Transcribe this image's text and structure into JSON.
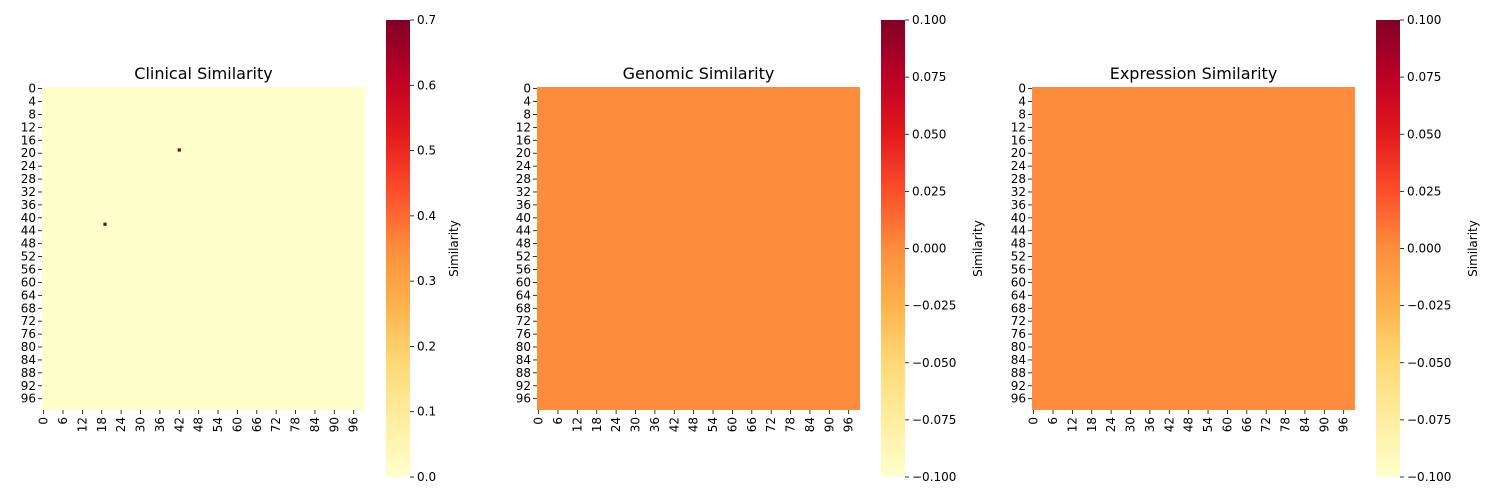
{
  "chart_data": [
    {
      "type": "heatmap",
      "title": "Clinical Similarity",
      "colorbar_label": "Similarity",
      "size": 100,
      "x_ticks": [
        0,
        6,
        12,
        18,
        24,
        30,
        36,
        42,
        48,
        54,
        60,
        66,
        72,
        78,
        84,
        90,
        96
      ],
      "y_ticks": [
        0,
        4,
        8,
        12,
        16,
        20,
        24,
        28,
        32,
        36,
        40,
        44,
        48,
        52,
        56,
        60,
        64,
        68,
        72,
        76,
        80,
        84,
        88,
        92,
        96
      ],
      "fill_value": 0.0,
      "highlights": [
        {
          "row": 19,
          "col": 42,
          "value": 0.7
        },
        {
          "row": 42,
          "col": 19,
          "value": 0.7
        }
      ],
      "vmin": 0.0,
      "vmax": 0.7,
      "colorbar_ticks": [
        "0.0",
        "0.1",
        "0.2",
        "0.3",
        "0.4",
        "0.5",
        "0.6",
        "0.7"
      ],
      "colormap": "YlOrRd"
    },
    {
      "type": "heatmap",
      "title": "Genomic Similarity",
      "colorbar_label": "Similarity",
      "size": 100,
      "x_ticks": [
        0,
        6,
        12,
        18,
        24,
        30,
        36,
        42,
        48,
        54,
        60,
        66,
        72,
        78,
        84,
        90,
        96
      ],
      "y_ticks": [
        0,
        4,
        8,
        12,
        16,
        20,
        24,
        28,
        32,
        36,
        40,
        44,
        48,
        52,
        56,
        60,
        64,
        68,
        72,
        76,
        80,
        84,
        88,
        92,
        96
      ],
      "fill_value": 0.0,
      "highlights": [],
      "vmin": -0.1,
      "vmax": 0.1,
      "colorbar_ticks": [
        "−0.100",
        "−0.075",
        "−0.050",
        "−0.025",
        "0.000",
        "0.025",
        "0.050",
        "0.075",
        "0.100"
      ],
      "colormap": "YlOrRd"
    },
    {
      "type": "heatmap",
      "title": "Expression Similarity",
      "colorbar_label": "Similarity",
      "size": 100,
      "x_ticks": [
        0,
        6,
        12,
        18,
        24,
        30,
        36,
        42,
        48,
        54,
        60,
        66,
        72,
        78,
        84,
        90,
        96
      ],
      "y_ticks": [
        0,
        4,
        8,
        12,
        16,
        20,
        24,
        28,
        32,
        36,
        40,
        44,
        48,
        52,
        56,
        60,
        64,
        68,
        72,
        76,
        80,
        84,
        88,
        92,
        96
      ],
      "fill_value": 0.0,
      "highlights": [],
      "vmin": -0.1,
      "vmax": 0.1,
      "colorbar_ticks": [
        "−0.100",
        "−0.075",
        "−0.050",
        "−0.025",
        "0.000",
        "0.025",
        "0.050",
        "0.075",
        "0.100"
      ],
      "colormap": "YlOrRd"
    }
  ]
}
